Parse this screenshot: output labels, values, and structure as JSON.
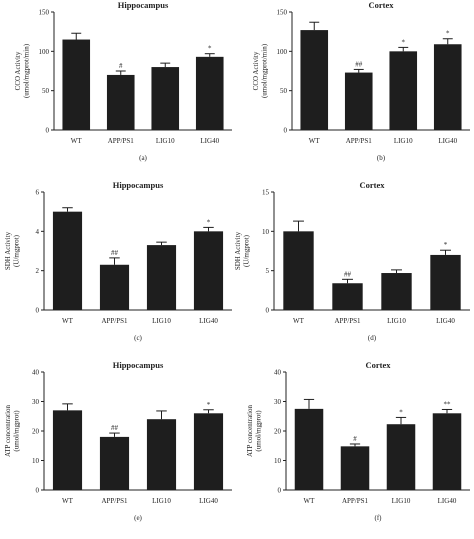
{
  "chart_data": [
    {
      "type": "bar",
      "panel_label": "(a)",
      "title": "Hippocampus",
      "ylabel": [
        "CCO Activity",
        "(umol/mgprot/min)"
      ],
      "ylim": [
        0,
        150
      ],
      "yticks": [
        0,
        50,
        100,
        150
      ],
      "categories": [
        "WT",
        "APP/PS1",
        "LIG10",
        "LIG40"
      ],
      "values": [
        115,
        70,
        80,
        93
      ],
      "errors": [
        8,
        5,
        5,
        4
      ],
      "significance": [
        "",
        "#",
        "",
        "*"
      ]
    },
    {
      "type": "bar",
      "panel_label": "(b)",
      "title": "Cortex",
      "ylabel": [
        "CCO Activity",
        "(umol/mgprot/min)"
      ],
      "ylim": [
        0,
        150
      ],
      "yticks": [
        0,
        50,
        100,
        150
      ],
      "categories": [
        "WT",
        "APP/PS1",
        "LIG10",
        "LIG40"
      ],
      "values": [
        127,
        73,
        100,
        109
      ],
      "errors": [
        10,
        4,
        5,
        7
      ],
      "significance": [
        "",
        "##",
        "*",
        "*"
      ]
    },
    {
      "type": "bar",
      "panel_label": "(c)",
      "title": "Hippocampus",
      "ylabel": [
        "SDH Activity",
        "(U/mgprot)"
      ],
      "ylim": [
        0,
        6
      ],
      "yticks": [
        0,
        2,
        4,
        6
      ],
      "categories": [
        "WT",
        "APP/PS1",
        "LIG10",
        "LIG40"
      ],
      "values": [
        5.0,
        2.3,
        3.3,
        4.0
      ],
      "errors": [
        0.2,
        0.35,
        0.15,
        0.2
      ],
      "significance": [
        "",
        "##",
        "",
        "*"
      ]
    },
    {
      "type": "bar",
      "panel_label": "(d)",
      "title": "Cortex",
      "ylabel": [
        "SDH Activity",
        "(U/mgprot)"
      ],
      "ylim": [
        0,
        15
      ],
      "yticks": [
        0,
        5,
        10,
        15
      ],
      "categories": [
        "WT",
        "APP/PS1",
        "LIG10",
        "LIG40"
      ],
      "values": [
        10.0,
        3.4,
        4.7,
        7.0
      ],
      "errors": [
        1.3,
        0.5,
        0.4,
        0.6
      ],
      "significance": [
        "",
        "##",
        "",
        "*"
      ]
    },
    {
      "type": "bar",
      "panel_label": "(e)",
      "title": "Hippocampus",
      "ylabel": [
        "ATP concentration",
        "(umol/mgprot)"
      ],
      "ylim": [
        0,
        40
      ],
      "yticks": [
        0,
        10,
        20,
        30,
        40
      ],
      "categories": [
        "WT",
        "APP/PS1",
        "LIG10",
        "LIG40"
      ],
      "values": [
        27,
        18,
        24,
        26
      ],
      "errors": [
        2.2,
        1.3,
        2.8,
        1.2
      ],
      "significance": [
        "",
        "##",
        "",
        "*"
      ]
    },
    {
      "type": "bar",
      "panel_label": "(f)",
      "title": "Cortex",
      "ylabel": [
        "ATP concentration",
        "(umol/mgprot)"
      ],
      "ylim": [
        0,
        40
      ],
      "yticks": [
        0,
        10,
        20,
        30,
        40
      ],
      "categories": [
        "WT",
        "APP/PS1",
        "LIG10",
        "LIG40"
      ],
      "values": [
        27.5,
        14.8,
        22.3,
        26.0
      ],
      "errors": [
        3.2,
        0.8,
        2.3,
        1.3
      ],
      "significance": [
        "",
        "#",
        "*",
        "**"
      ]
    }
  ],
  "colors": {
    "bar": "#1e1e1e",
    "axis": "#222222",
    "footer_text": "#666666"
  }
}
